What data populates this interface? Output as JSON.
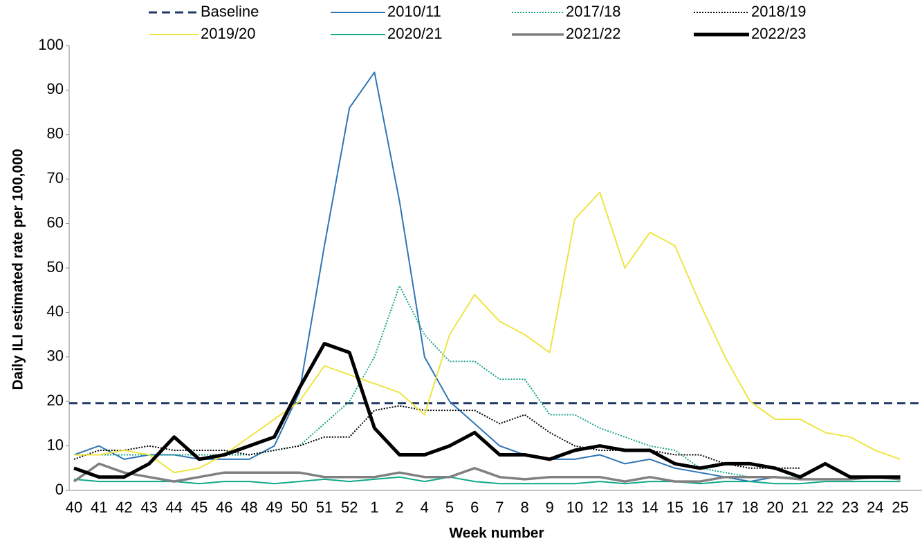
{
  "chart_data": {
    "type": "line",
    "x_label": "Week number",
    "y_label": "Daily ILI estimated rate per 100,000",
    "categories": [
      "40",
      "41",
      "42",
      "43",
      "44",
      "45",
      "46",
      "48",
      "49",
      "50",
      "51",
      "52",
      "1",
      "2",
      "4",
      "5",
      "6",
      "7",
      "8",
      "9",
      "10",
      "12",
      "13",
      "14",
      "15",
      "16",
      "17",
      "18",
      "20",
      "21",
      "22",
      "23",
      "24",
      "25"
    ],
    "baseline": {
      "name": "Baseline",
      "value": 19.6,
      "color": "#1f3864",
      "dash": "dashed"
    },
    "series": [
      {
        "name": "2010/11",
        "color": "#2e75b6",
        "dash": "solid",
        "weight": "normal",
        "values": [
          8,
          10,
          7,
          8,
          8,
          7,
          7,
          7,
          10,
          22,
          55,
          86,
          94,
          65,
          30,
          20,
          15,
          10,
          8,
          7,
          7,
          8,
          6,
          7,
          5,
          4,
          3,
          2,
          3,
          null,
          null,
          null,
          null,
          null
        ]
      },
      {
        "name": "2017/18",
        "color": "#1aa58a",
        "dash": "dotted",
        "weight": "normal",
        "values": [
          8,
          8,
          8,
          8,
          8,
          8,
          8,
          8,
          9,
          10,
          15,
          20,
          30,
          46,
          35,
          29,
          29,
          25,
          25,
          17,
          17,
          14,
          12,
          10,
          9,
          5,
          4,
          3,
          3,
          3,
          null,
          null,
          null,
          null
        ]
      },
      {
        "name": "2018/19",
        "color": "#000000",
        "dash": "dotted",
        "weight": "normal",
        "values": [
          7,
          9,
          9,
          10,
          9,
          9,
          9,
          8,
          9,
          10,
          12,
          12,
          18,
          19,
          18,
          18,
          18,
          15,
          17,
          13,
          10,
          9,
          9,
          9,
          8,
          8,
          6,
          5,
          5,
          5,
          null,
          null,
          null,
          null
        ]
      },
      {
        "name": "2019/20",
        "color": "#f0e442",
        "dash": "solid",
        "weight": "normal",
        "values": [
          8,
          8,
          9,
          8,
          4,
          5,
          8,
          12,
          16,
          20,
          28,
          26,
          24,
          22,
          17,
          35,
          44,
          38,
          35,
          31,
          61,
          67,
          50,
          58,
          55,
          42,
          30,
          20,
          16,
          16,
          13,
          12,
          9,
          7
        ]
      },
      {
        "name": "2020/21",
        "color": "#10a88a",
        "dash": "solid",
        "weight": "normal",
        "values": [
          2.5,
          2,
          2,
          2,
          2,
          1.5,
          2,
          2,
          1.5,
          2,
          2.5,
          2,
          2.5,
          3,
          2,
          3,
          2,
          1.5,
          1.5,
          1.5,
          1.5,
          2,
          1.5,
          2,
          2,
          1.5,
          2,
          2,
          1.5,
          1.5,
          2,
          2,
          2,
          2
        ]
      },
      {
        "name": "2021/22",
        "color": "#808080",
        "dash": "solid",
        "weight": "medium",
        "values": [
          2,
          6,
          4,
          3,
          2,
          3,
          4,
          4,
          4,
          4,
          3,
          3,
          3,
          4,
          3,
          3,
          5,
          3,
          2.5,
          3,
          3,
          3,
          2,
          3,
          2,
          2,
          3,
          3,
          3,
          2.5,
          2.5,
          2.5,
          3,
          2.5
        ]
      },
      {
        "name": "2022/23",
        "color": "#000000",
        "dash": "solid",
        "weight": "thick",
        "values": [
          5,
          3,
          3,
          6,
          12,
          7,
          8,
          10,
          12,
          23,
          33,
          31,
          14,
          8,
          8,
          10,
          13,
          8,
          8,
          7,
          9,
          10,
          9,
          9,
          6,
          5,
          6,
          6,
          5,
          3,
          6,
          3,
          3,
          3
        ]
      }
    ],
    "ylim": [
      0,
      100
    ],
    "yticks": [
      0,
      10,
      20,
      30,
      40,
      50,
      60,
      70,
      80,
      90,
      100
    ],
    "grid": false
  }
}
